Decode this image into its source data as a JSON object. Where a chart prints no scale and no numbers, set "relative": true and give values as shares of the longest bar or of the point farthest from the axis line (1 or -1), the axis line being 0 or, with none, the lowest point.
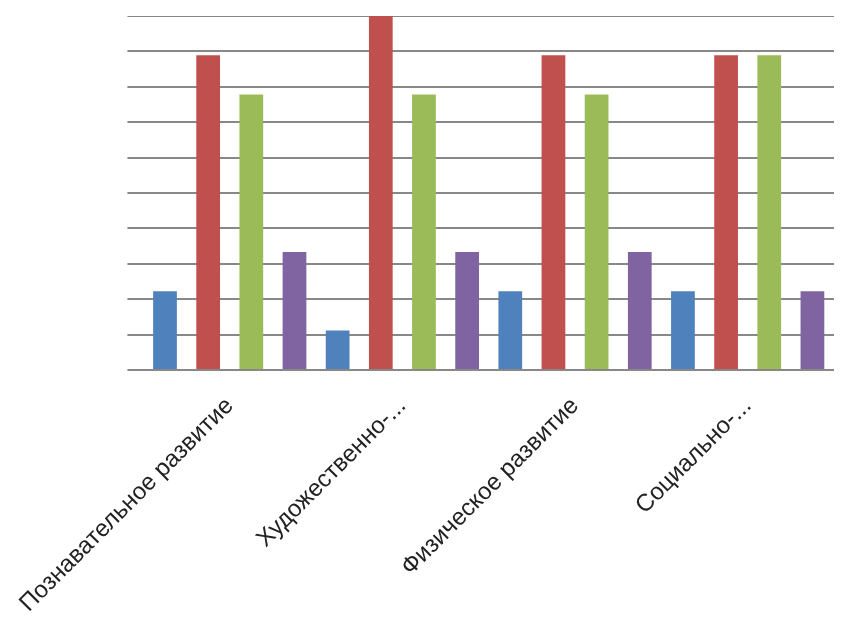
{
  "chart_data": {
    "type": "bar",
    "relative": true,
    "grid": "y",
    "categories": [
      "Познавательное развитие",
      "Художественно-...",
      "Физическое развитие",
      "Социально-..."
    ],
    "series": [
      {
        "color": "#4f81bd",
        "values": [
          0.222,
          0.111,
          0.222,
          0.222
        ]
      },
      {
        "color": "#c0504d",
        "values": [
          0.889,
          1,
          0.889,
          0.889
        ]
      },
      {
        "color": "#9bbb59",
        "values": [
          0.778,
          0.778,
          0.778,
          0.889
        ]
      },
      {
        "color": "#8064a2",
        "values": [
          0.333,
          0.333,
          0.333,
          0.222
        ]
      }
    ]
  }
}
